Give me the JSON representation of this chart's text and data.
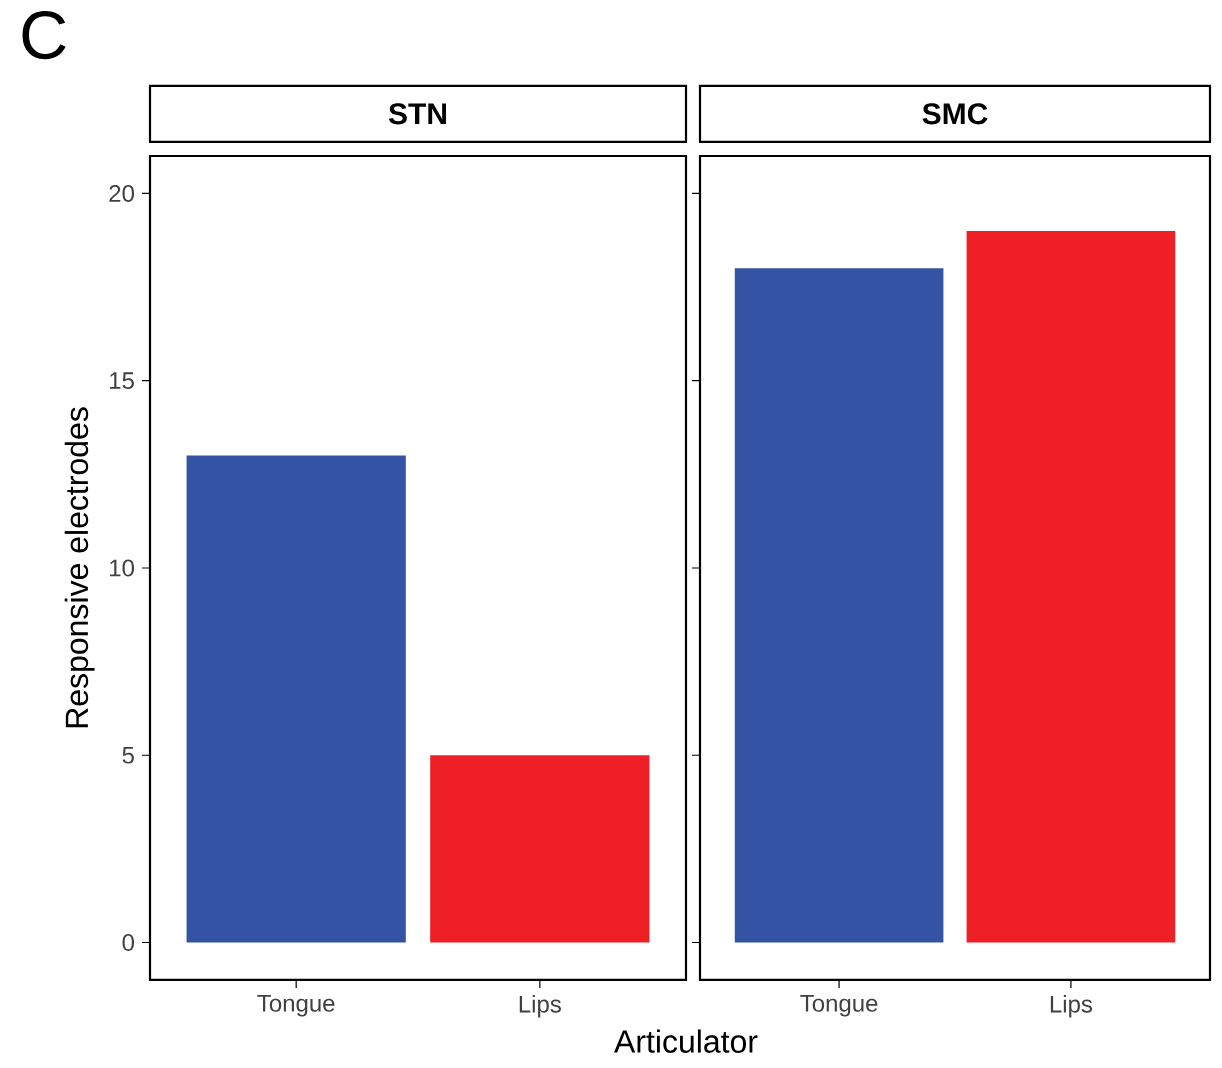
{
  "chart_data": [
    {
      "type": "bar",
      "title": "STN",
      "categories": [
        "Tongue",
        "Lips"
      ],
      "values": [
        13,
        5
      ],
      "colors": [
        "#3553a5",
        "#ee1f25"
      ],
      "ylim": [
        -1,
        21
      ],
      "yticks": [
        0,
        5,
        10,
        15,
        20
      ],
      "ylabel": "Responsive electrodes",
      "xlabel": "Articulator",
      "annotations": [
        "C"
      ]
    },
    {
      "type": "bar",
      "title": "SMC",
      "categories": [
        "Tongue",
        "Lips"
      ],
      "values": [
        18,
        19
      ],
      "colors": [
        "#3553a5",
        "#ee1f25"
      ],
      "ylim": [
        -1,
        21
      ],
      "yticks": [
        0,
        5,
        10,
        15,
        20
      ],
      "tick_labels": "x"
    }
  ]
}
